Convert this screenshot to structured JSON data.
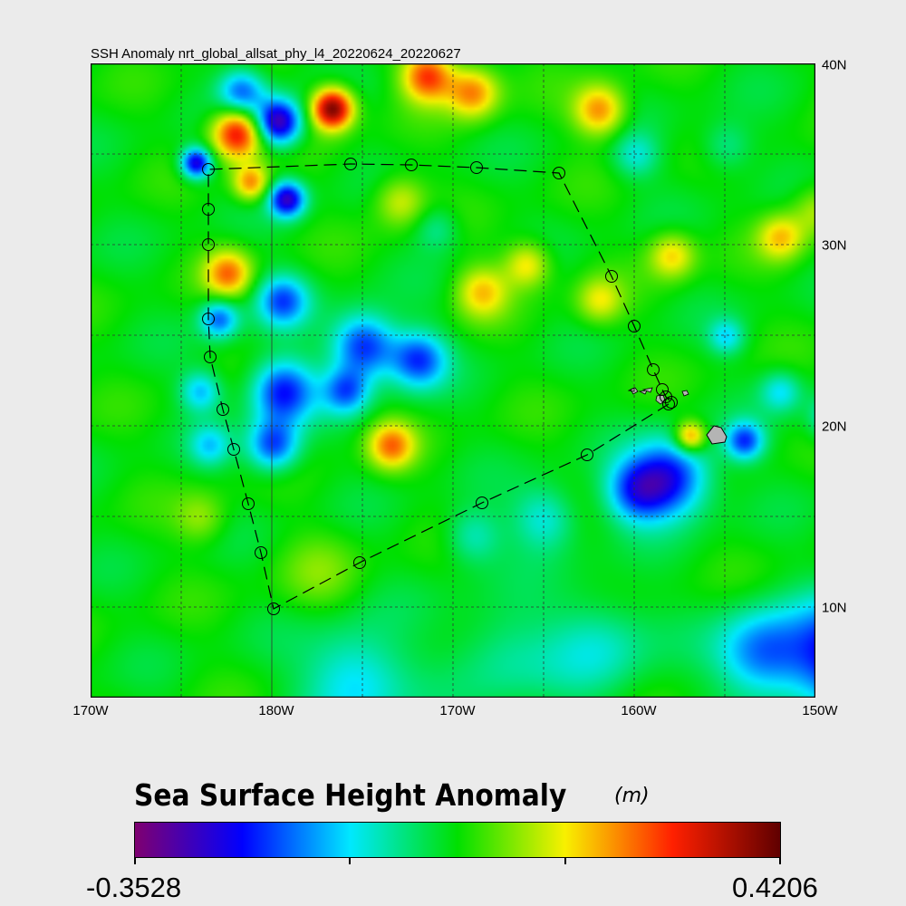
{
  "title": "SSH Anomaly nrt_global_allsat_phy_l4_20220624_20220627",
  "map": {
    "lon_labels": [
      "170W",
      "180W",
      "170W",
      "160W",
      "150W"
    ],
    "lat_labels": [
      "40N",
      "30N",
      "20N",
      "10N"
    ],
    "gridlines": true,
    "field": "sea surface height anomaly",
    "track_color": "#000000",
    "land_color": "#b4b4b4",
    "track_points": [
      {
        "lon_e": 201.9,
        "lat": 21.2
      },
      {
        "lon_e": 197.4,
        "lat": 18.4
      },
      {
        "lon_e": 191.6,
        "lat": 15.75
      },
      {
        "lon_e": 184.85,
        "lat": 12.45
      },
      {
        "lon_e": 180.1,
        "lat": 9.9
      },
      {
        "lon_e": 179.4,
        "lat": 13.0
      },
      {
        "lon_e": 178.7,
        "lat": 15.7
      },
      {
        "lon_e": 177.9,
        "lat": 18.7
      },
      {
        "lon_e": 177.3,
        "lat": 20.9
      },
      {
        "lon_e": 176.6,
        "lat": 23.8
      },
      {
        "lon_e": 176.5,
        "lat": 25.9
      },
      {
        "lon_e": 176.5,
        "lat": 30.0
      },
      {
        "lon_e": 176.5,
        "lat": 31.95
      },
      {
        "lon_e": 176.5,
        "lat": 34.15
      },
      {
        "lon_e": 184.35,
        "lat": 34.45
      },
      {
        "lon_e": 187.7,
        "lat": 34.4
      },
      {
        "lon_e": 191.3,
        "lat": 34.25
      },
      {
        "lon_e": 195.85,
        "lat": 33.95
      },
      {
        "lon_e": 198.75,
        "lat": 28.25
      },
      {
        "lon_e": 200.0,
        "lat": 25.5
      },
      {
        "lon_e": 201.05,
        "lat": 23.1
      },
      {
        "lon_e": 201.55,
        "lat": 22.0
      },
      {
        "lon_e": 201.75,
        "lat": 21.6
      },
      {
        "lon_e": 202.05,
        "lat": 21.3
      }
    ]
  },
  "colorbar": {
    "title": "Sea Surface Height Anomaly",
    "unit": "(m)",
    "min_label": "-0.3528",
    "max_label": "0.4206",
    "min": -0.3528,
    "max": 0.4206,
    "colors": [
      "#7f0070",
      "#0000ff",
      "#00e8ff",
      "#00e000",
      "#f8f000",
      "#ff2000",
      "#600000"
    ]
  }
}
